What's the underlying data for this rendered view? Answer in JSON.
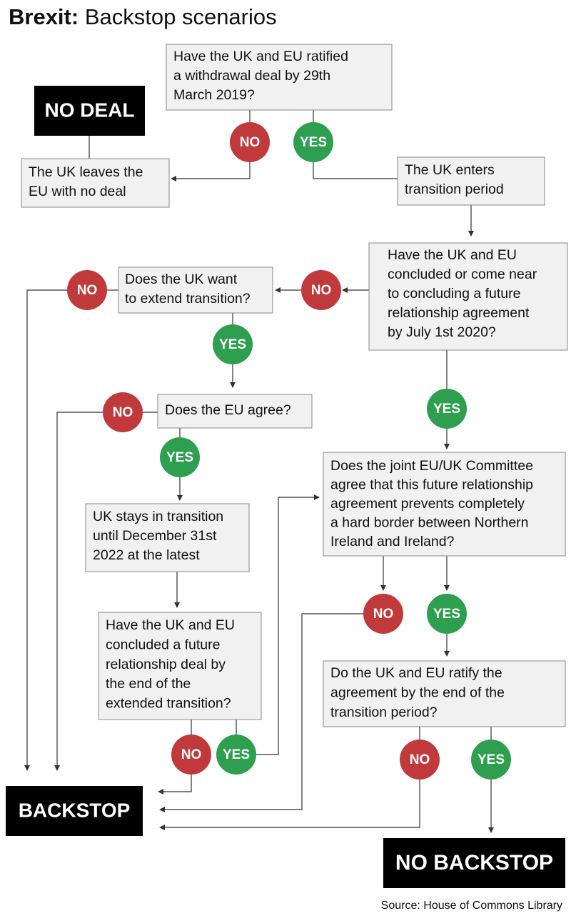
{
  "title": {
    "bold": "Brexit:",
    "rest": "Backstop scenarios"
  },
  "boxes": [
    {
      "lines": [
        "Have the UK and EU ratified",
        "a withdrawal deal by 29th",
        "March 2019?"
      ]
    },
    {
      "lines": [
        "The UK leaves the",
        "EU with no deal"
      ]
    },
    {
      "lines": [
        "The UK enters",
        "transition period"
      ]
    },
    {
      "lines": [
        "Have the UK and EU",
        "concluded or come near",
        "to concluding a future",
        "relationship agreement",
        "by July 1st 2020?"
      ]
    },
    {
      "lines": [
        "Does the UK want",
        "to extend transition?"
      ]
    },
    {
      "lines": [
        "Does the EU agree?"
      ]
    },
    {
      "lines": [
        "UK stays in transition",
        "until December 31st",
        "2022  at the latest"
      ]
    },
    {
      "lines": [
        "Have the UK and EU",
        "concluded a future",
        "relationship deal by",
        "the end of the",
        "extended transition?"
      ]
    },
    {
      "lines": [
        "Does the joint EU/UK Committee",
        "agree that this future relationship",
        "agreement prevents completely",
        "a hard border between Northern",
        "Ireland and Ireland?"
      ]
    },
    {
      "lines": [
        "Do the UK and EU ratify the",
        "agreement by the end of the",
        "transition period?"
      ]
    }
  ],
  "terminals": [
    "NO DEAL",
    "BACKSTOP",
    "NO BACKSTOP"
  ],
  "circles": [
    "NO",
    "YES",
    "NO",
    "NO",
    "YES",
    "NO",
    "YES",
    "YES",
    "NO",
    "YES",
    "NO",
    "YES",
    "NO",
    "YES"
  ],
  "source": "Source: House of Commons Library"
}
